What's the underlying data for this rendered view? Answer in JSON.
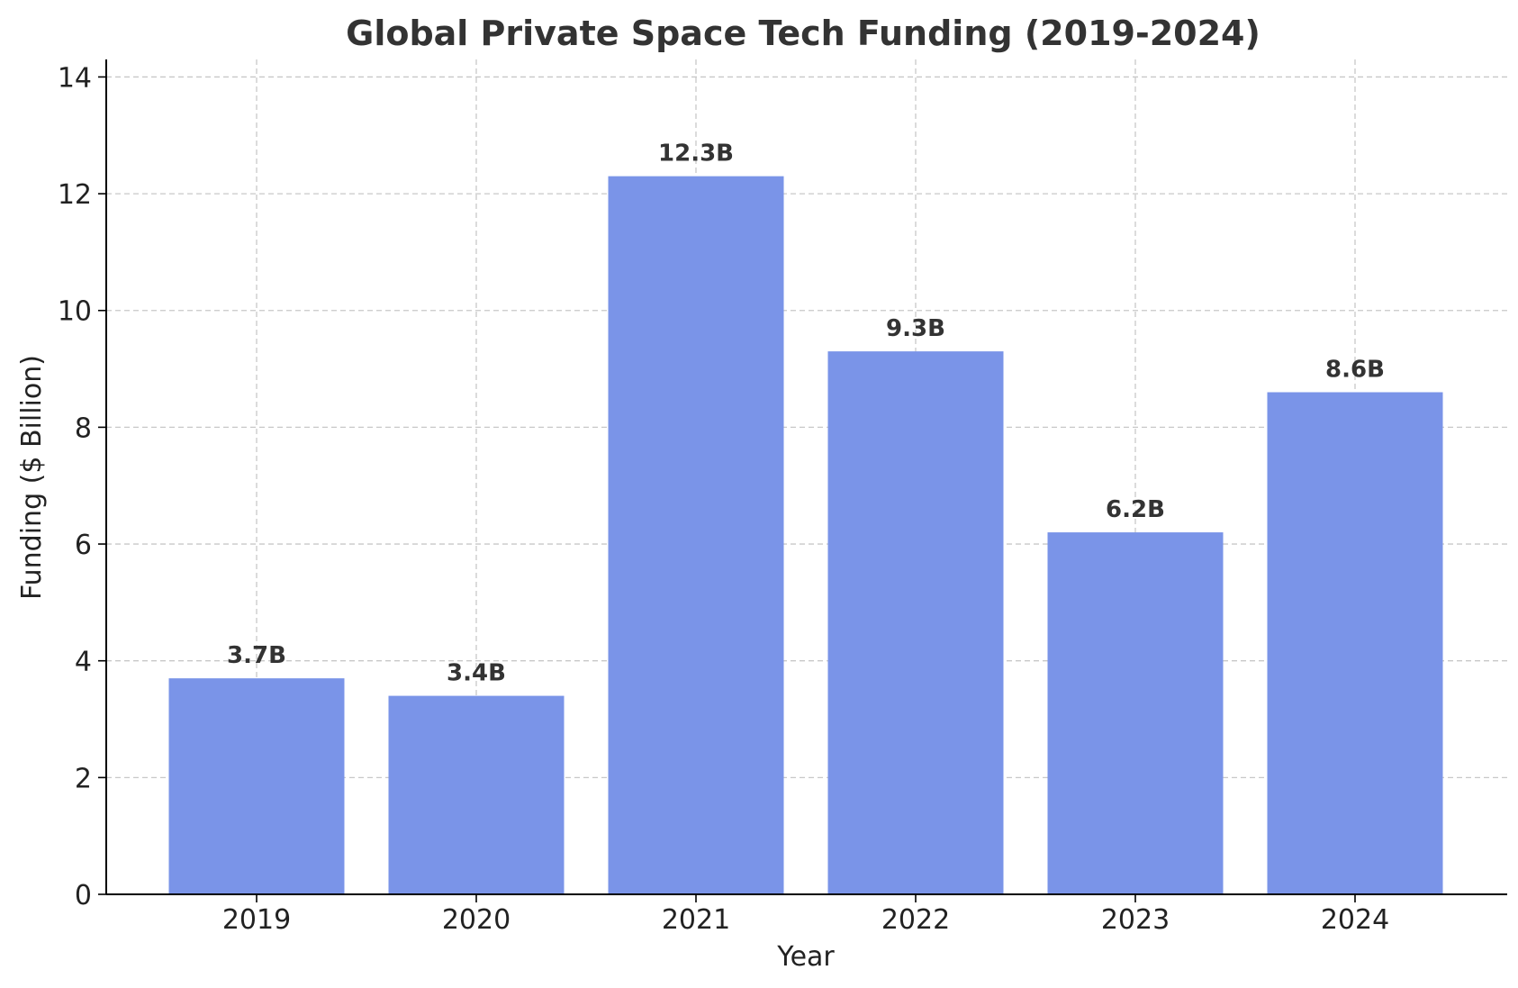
{
  "chart_data": {
    "type": "bar",
    "title": "Global Private Space Tech Funding (2019-2024)",
    "xlabel": "Year",
    "ylabel": "Funding ($ Billion)",
    "categories": [
      "2019",
      "2020",
      "2021",
      "2022",
      "2023",
      "2024"
    ],
    "values": [
      3.7,
      3.4,
      12.3,
      9.3,
      6.2,
      8.6
    ],
    "data_labels": [
      "3.7B",
      "3.4B",
      "12.3B",
      "9.3B",
      "6.2B",
      "8.6B"
    ],
    "ylim": [
      0,
      14.3
    ],
    "yticks": [
      0,
      2,
      4,
      6,
      8,
      10,
      12,
      14
    ],
    "ytick_labels": [
      "0",
      "2",
      "4",
      "6",
      "8",
      "10",
      "12",
      "14"
    ],
    "grid": true,
    "bar_color": "#7a94e8",
    "text_color": "#333333"
  }
}
